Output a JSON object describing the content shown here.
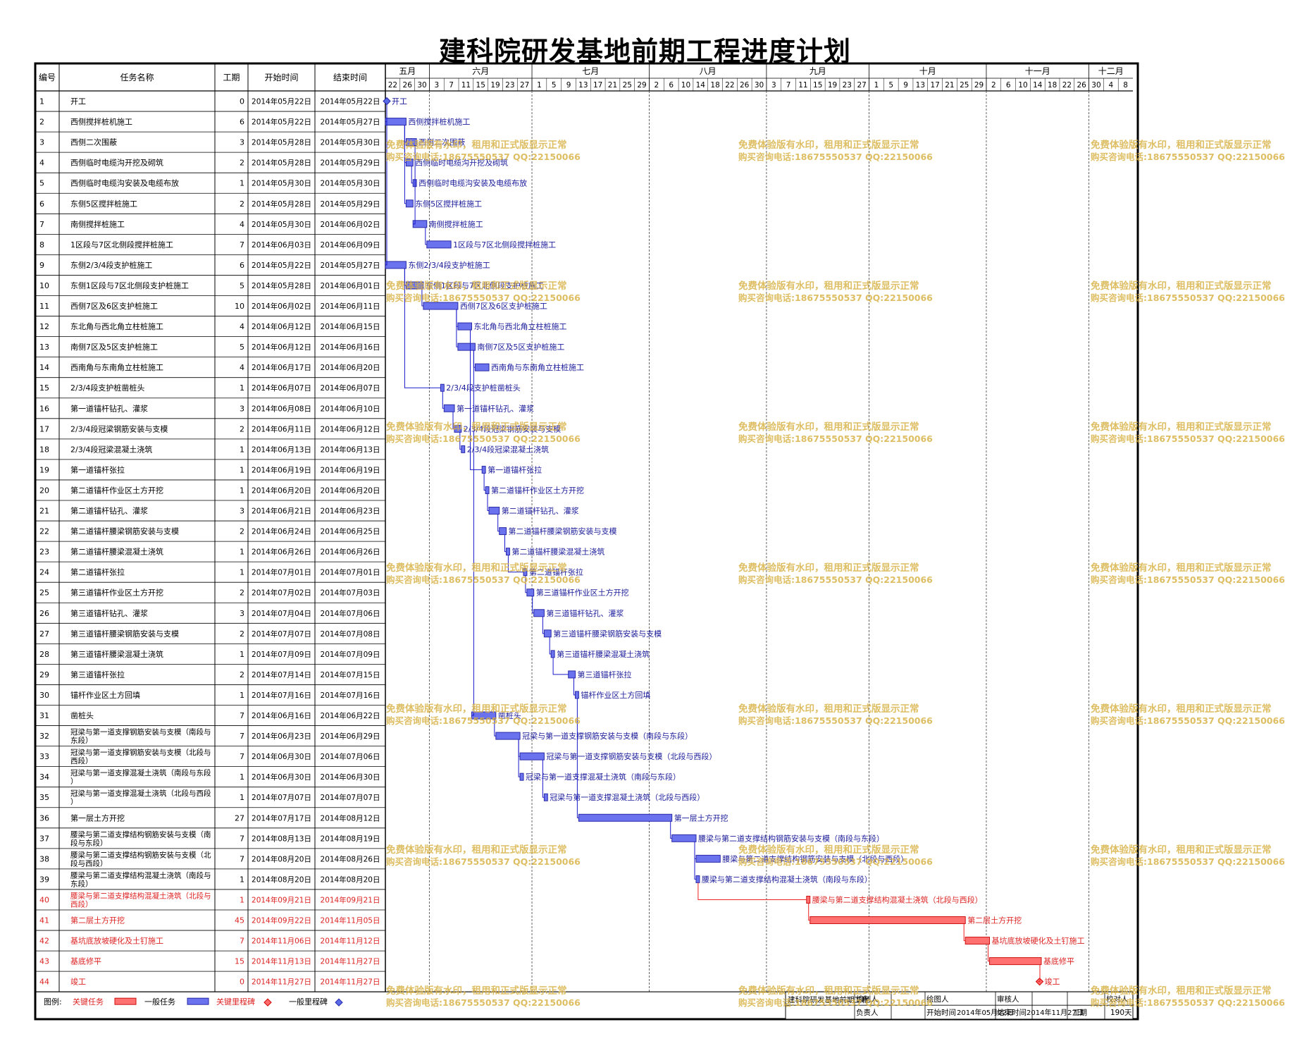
{
  "title": "建科院研发基地前期工程进度计划",
  "table_headers": {
    "id": "编号",
    "name": "任务名称",
    "duration": "工期",
    "start": "开始时间",
    "end": "结束时间"
  },
  "months": [
    {
      "label": "五月",
      "days": [
        "22",
        "26",
        "30"
      ]
    },
    {
      "label": "六月",
      "days": [
        "3",
        "7",
        "11",
        "15",
        "19",
        "23",
        "27"
      ]
    },
    {
      "label": "七月",
      "days": [
        "1",
        "5",
        "9",
        "13",
        "17",
        "21",
        "25",
        "29"
      ]
    },
    {
      "label": "八月",
      "days": [
        "2",
        "6",
        "10",
        "14",
        "18",
        "22",
        "26",
        "30"
      ]
    },
    {
      "label": "九月",
      "days": [
        "3",
        "7",
        "11",
        "15",
        "19",
        "23",
        "27"
      ]
    },
    {
      "label": "十月",
      "days": [
        "1",
        "5",
        "9",
        "13",
        "17",
        "21",
        "25",
        "29"
      ]
    },
    {
      "label": "十一月",
      "days": [
        "2",
        "6",
        "10",
        "14",
        "18",
        "22",
        "26"
      ]
    },
    {
      "label": "十二月",
      "days": [
        "30",
        "4",
        "8"
      ]
    }
  ],
  "watermark": {
    "line1": "免费体验版有水印，租用和正式版显示正常",
    "line2": "购买咨询电话:18675550537 QQ:22150066"
  },
  "legend": {
    "label": "图例:",
    "critical_task": "关键任务",
    "normal_task": "一般任务",
    "critical_milestone": "关键里程碑",
    "normal_milestone": "一般里程碑"
  },
  "footer": {
    "project": "建科院研发基地前期工程",
    "drafter": "编制人",
    "owner": "负责人",
    "plotter": "绘图人",
    "reviewer": "审核人",
    "checker": "校对人",
    "start_label": "开始时间",
    "start_value": "2014年05月22日",
    "end_label": "结束时间",
    "end_value": "2014年11月27日",
    "duration_label": "工期",
    "duration_value": "190天"
  },
  "colors": {
    "normal": "#3a3ad8",
    "critical": "#ee4444",
    "link": "#1a1acc",
    "watermark": "#d9b348"
  },
  "chart_data": {
    "type": "gantt",
    "title": "建科院研发基地前期工程进度计划",
    "x_range": [
      "2014-05-22",
      "2014-12-08"
    ],
    "tasks": [
      {
        "id": "1",
        "name": "开工",
        "dur": "0",
        "start": "2014年05月22日",
        "end": "2014年05月22日",
        "s": "2014-05-22",
        "e": "2014-05-22",
        "milestone": true,
        "critical": false
      },
      {
        "id": "2",
        "name": "西侧搅拌桩机施工",
        "dur": "6",
        "start": "2014年05月22日",
        "end": "2014年05月27日",
        "s": "2014-05-22",
        "e": "2014-05-27",
        "critical": false
      },
      {
        "id": "3",
        "name": "西侧二次围蔽",
        "dur": "3",
        "start": "2014年05月28日",
        "end": "2014年05月30日",
        "s": "2014-05-28",
        "e": "2014-05-30",
        "critical": false
      },
      {
        "id": "4",
        "name": "西侧临时电缆沟开挖及砌筑",
        "dur": "2",
        "start": "2014年05月28日",
        "end": "2014年05月29日",
        "s": "2014-05-28",
        "e": "2014-05-29",
        "critical": false
      },
      {
        "id": "5",
        "name": "西侧临时电缆沟安装及电缆布放",
        "dur": "1",
        "start": "2014年05月30日",
        "end": "2014年05月30日",
        "s": "2014-05-30",
        "e": "2014-05-30",
        "critical": false
      },
      {
        "id": "6",
        "name": "东侧5区搅拌桩施工",
        "dur": "2",
        "start": "2014年05月28日",
        "end": "2014年05月29日",
        "s": "2014-05-28",
        "e": "2014-05-29",
        "critical": false
      },
      {
        "id": "7",
        "name": "南侧搅拌桩施工",
        "dur": "4",
        "start": "2014年05月30日",
        "end": "2014年06月02日",
        "s": "2014-05-30",
        "e": "2014-06-02",
        "critical": false
      },
      {
        "id": "8",
        "name": "1区段与7区北侧段搅拌桩施工",
        "dur": "7",
        "start": "2014年06月03日",
        "end": "2014年06月09日",
        "s": "2014-06-03",
        "e": "2014-06-09",
        "critical": false
      },
      {
        "id": "9",
        "name": "东侧2/3/4段支护桩施工",
        "dur": "6",
        "start": "2014年05月22日",
        "end": "2014年05月27日",
        "s": "2014-05-22",
        "e": "2014-05-27",
        "critical": false
      },
      {
        "id": "10",
        "name": "东侧1区段与7区北侧段支护桩施工",
        "dur": "5",
        "start": "2014年05月28日",
        "end": "2014年06月01日",
        "s": "2014-05-28",
        "e": "2014-06-01",
        "critical": false
      },
      {
        "id": "11",
        "name": "西侧7区及6区支护桩施工",
        "dur": "10",
        "start": "2014年06月02日",
        "end": "2014年06月11日",
        "s": "2014-06-02",
        "e": "2014-06-11",
        "critical": false
      },
      {
        "id": "12",
        "name": "东北角与西北角立柱桩施工",
        "dur": "4",
        "start": "2014年06月12日",
        "end": "2014年06月15日",
        "s": "2014-06-12",
        "e": "2014-06-15",
        "critical": false
      },
      {
        "id": "13",
        "name": "南侧7区及5区支护桩施工",
        "dur": "5",
        "start": "2014年06月12日",
        "end": "2014年06月16日",
        "s": "2014-06-12",
        "e": "2014-06-16",
        "critical": false
      },
      {
        "id": "14",
        "name": "西南角与东南角立柱桩施工",
        "dur": "4",
        "start": "2014年06月17日",
        "end": "2014年06月20日",
        "s": "2014-06-17",
        "e": "2014-06-20",
        "critical": false
      },
      {
        "id": "15",
        "name": "2/3/4段支护桩凿桩头",
        "dur": "1",
        "start": "2014年06月07日",
        "end": "2014年06月07日",
        "s": "2014-06-07",
        "e": "2014-06-07",
        "critical": false
      },
      {
        "id": "16",
        "name": "第一道锚杆钻孔、灌浆",
        "dur": "3",
        "start": "2014年06月08日",
        "end": "2014年06月10日",
        "s": "2014-06-08",
        "e": "2014-06-10",
        "critical": false
      },
      {
        "id": "17",
        "name": "2/3/4段冠梁钢筋安装与支模",
        "dur": "2",
        "start": "2014年06月11日",
        "end": "2014年06月12日",
        "s": "2014-06-11",
        "e": "2014-06-12",
        "critical": false
      },
      {
        "id": "18",
        "name": "2/3/4段冠梁混凝土浇筑",
        "dur": "1",
        "start": "2014年06月13日",
        "end": "2014年06月13日",
        "s": "2014-06-13",
        "e": "2014-06-13",
        "critical": false
      },
      {
        "id": "19",
        "name": "第一道锚杆张拉",
        "dur": "1",
        "start": "2014年06月19日",
        "end": "2014年06月19日",
        "s": "2014-06-19",
        "e": "2014-06-19",
        "critical": false
      },
      {
        "id": "20",
        "name": "第二道锚杆作业区土方开挖",
        "dur": "1",
        "start": "2014年06月20日",
        "end": "2014年06月20日",
        "s": "2014-06-20",
        "e": "2014-06-20",
        "critical": false
      },
      {
        "id": "21",
        "name": "第二道锚杆钻孔、灌浆",
        "dur": "3",
        "start": "2014年06月21日",
        "end": "2014年06月23日",
        "s": "2014-06-21",
        "e": "2014-06-23",
        "critical": false
      },
      {
        "id": "22",
        "name": "第二道锚杆腰梁钢筋安装与支模",
        "dur": "2",
        "start": "2014年06月24日",
        "end": "2014年06月25日",
        "s": "2014-06-24",
        "e": "2014-06-25",
        "critical": false
      },
      {
        "id": "23",
        "name": "第二道锚杆腰梁混凝土浇筑",
        "dur": "1",
        "start": "2014年06月26日",
        "end": "2014年06月26日",
        "s": "2014-06-26",
        "e": "2014-06-26",
        "critical": false
      },
      {
        "id": "24",
        "name": "第二道锚杆张拉",
        "dur": "1",
        "start": "2014年07月01日",
        "end": "2014年07月01日",
        "s": "2014-07-01",
        "e": "2014-07-01",
        "critical": false
      },
      {
        "id": "25",
        "name": "第三道锚杆作业区土方开挖",
        "dur": "2",
        "start": "2014年07月02日",
        "end": "2014年07月03日",
        "s": "2014-07-02",
        "e": "2014-07-03",
        "critical": false
      },
      {
        "id": "26",
        "name": "第三道锚杆钻孔、灌浆",
        "dur": "3",
        "start": "2014年07月04日",
        "end": "2014年07月06日",
        "s": "2014-07-04",
        "e": "2014-07-06",
        "critical": false
      },
      {
        "id": "27",
        "name": "第三道锚杆腰梁钢筋安装与支模",
        "dur": "2",
        "start": "2014年07月07日",
        "end": "2014年07月08日",
        "s": "2014-07-07",
        "e": "2014-07-08",
        "critical": false
      },
      {
        "id": "28",
        "name": "第三道锚杆腰梁混凝土浇筑",
        "dur": "1",
        "start": "2014年07月09日",
        "end": "2014年07月09日",
        "s": "2014-07-09",
        "e": "2014-07-09",
        "critical": false
      },
      {
        "id": "29",
        "name": "第三道锚杆张拉",
        "dur": "2",
        "start": "2014年07月14日",
        "end": "2014年07月15日",
        "s": "2014-07-14",
        "e": "2014-07-15",
        "critical": false
      },
      {
        "id": "30",
        "name": "锚杆作业区土方回填",
        "dur": "1",
        "start": "2014年07月16日",
        "end": "2014年07月16日",
        "s": "2014-07-16",
        "e": "2014-07-16",
        "critical": false
      },
      {
        "id": "31",
        "name": "凿桩头",
        "dur": "7",
        "start": "2014年06月16日",
        "end": "2014年06月22日",
        "s": "2014-06-16",
        "e": "2014-06-22",
        "critical": false
      },
      {
        "id": "32",
        "name": "冠梁与第一道支撑钢筋安装与支模（南段与东段）",
        "dur": "7",
        "start": "2014年06月23日",
        "end": "2014年06月29日",
        "s": "2014-06-23",
        "e": "2014-06-29",
        "critical": false
      },
      {
        "id": "33",
        "name": "冠梁与第一道支撑钢筋安装与支模（北段与西段）",
        "dur": "7",
        "start": "2014年06月30日",
        "end": "2014年07月06日",
        "s": "2014-06-30",
        "e": "2014-07-06",
        "critical": false
      },
      {
        "id": "34",
        "name": "冠梁与第一道支撑混凝土浇筑（南段与东段）",
        "dur": "1",
        "start": "2014年06月30日",
        "end": "2014年06月30日",
        "s": "2014-06-30",
        "e": "2014-06-30",
        "critical": false
      },
      {
        "id": "35",
        "name": "冠梁与第一道支撑混凝土浇筑（北段与西段）",
        "dur": "1",
        "start": "2014年07月07日",
        "end": "2014年07月07日",
        "s": "2014-07-07",
        "e": "2014-07-07",
        "critical": false
      },
      {
        "id": "36",
        "name": "第一层土方开挖",
        "dur": "27",
        "start": "2014年07月17日",
        "end": "2014年08月12日",
        "s": "2014-07-17",
        "e": "2014-08-12",
        "critical": false
      },
      {
        "id": "37",
        "name": "腰梁与第二道支撑结构钢筋安装与支模（南段与东段）",
        "dur": "7",
        "start": "2014年08月13日",
        "end": "2014年08月19日",
        "s": "2014-08-13",
        "e": "2014-08-19",
        "critical": false
      },
      {
        "id": "38",
        "name": "腰梁与第二道支撑结构钢筋安装与支模（北段与西段）",
        "dur": "7",
        "start": "2014年08月20日",
        "end": "2014年08月26日",
        "s": "2014-08-20",
        "e": "2014-08-26",
        "critical": false
      },
      {
        "id": "39",
        "name": "腰梁与第二道支撑结构混凝土浇筑（南段与东段）",
        "dur": "1",
        "start": "2014年08月20日",
        "end": "2014年08月20日",
        "s": "2014-08-20",
        "e": "2014-08-20",
        "critical": false
      },
      {
        "id": "40",
        "name": "腰梁与第二道支撑结构混凝土浇筑（北段与西段）",
        "dur": "1",
        "start": "2014年09月21日",
        "end": "2014年09月21日",
        "s": "2014-09-21",
        "e": "2014-09-21",
        "critical": true
      },
      {
        "id": "41",
        "name": "第二层土方开挖",
        "dur": "45",
        "start": "2014年09月22日",
        "end": "2014年11月05日",
        "s": "2014-09-22",
        "e": "2014-11-05",
        "critical": true
      },
      {
        "id": "42",
        "name": "基坑底放坡硬化及土钉施工",
        "dur": "7",
        "start": "2014年11月06日",
        "end": "2014年11月12日",
        "s": "2014-11-06",
        "e": "2014-11-12",
        "critical": true
      },
      {
        "id": "43",
        "name": "基底修平",
        "dur": "15",
        "start": "2014年11月13日",
        "end": "2014年11月27日",
        "s": "2014-11-13",
        "e": "2014-11-27",
        "critical": true
      },
      {
        "id": "44",
        "name": "竣工",
        "dur": "0",
        "start": "2014年11月27日",
        "end": "2014年11月27日",
        "s": "2014-11-27",
        "e": "2014-11-27",
        "milestone": true,
        "critical": true
      }
    ]
  }
}
